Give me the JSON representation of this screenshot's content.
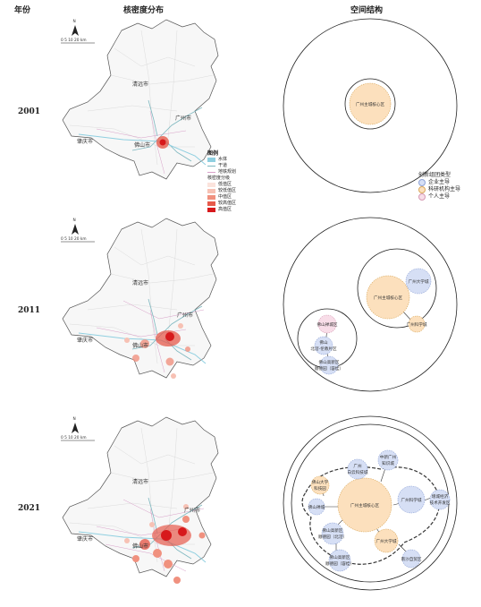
{
  "headers": {
    "year": "年份",
    "density": "核密度分布",
    "structure": "空间结构"
  },
  "years": [
    "2001",
    "2011",
    "2021"
  ],
  "map": {
    "north": "N",
    "scale": "0 5 10 20 km",
    "cities": {
      "qingyuan": "清远市",
      "guangzhou": "广州市",
      "zhaoqing": "肇庆市",
      "foshan": "佛山市"
    }
  },
  "legend": {
    "title": "图例",
    "water": "水体",
    "trunk": "干道",
    "metro": "地铁规划",
    "density_title": "核密度分级",
    "classes": [
      "低值区",
      "较低值区",
      "中值区",
      "较高值区",
      "高值区"
    ],
    "colors": {
      "water": "#8fcfe0",
      "trunk": "#7fb8c0",
      "metro": "#d8a0c8",
      "c1": "#fbe3dc",
      "c2": "#f7c1b4",
      "c3": "#f0917f",
      "c4": "#e65a4b",
      "c5": "#d7191c"
    }
  },
  "cluster_types": {
    "title": "创新组团类型",
    "enterprise": "企业主导",
    "research": "科研机构主导",
    "individual": "个人主导",
    "colors": {
      "enterprise": "#d6dff5",
      "research": "#fce0bd",
      "individual": "#f8dde8"
    }
  },
  "diagrams": {
    "d2001": {
      "core": "广州主城核心区"
    },
    "d2011": {
      "core": "广州主城核心区",
      "univ_town": "广州大学城",
      "knowledge": "广州科学城",
      "chancheng": "佛山禅城区",
      "beijiao": [
        "佛山",
        "北滘-伦教片区"
      ],
      "high_tech": [
        "佛山高新区",
        "顺德园（容桂）"
      ]
    },
    "d2021": {
      "core": "广州主城核心区",
      "science_city": "广州科学城",
      "univ_city": "广州大学城",
      "sino_sg": [
        "中新广州",
        "知识城"
      ],
      "baiyun": [
        "广州",
        "白云科技城"
      ],
      "econ_dev": [
        "增城经济",
        "技术开发区"
      ],
      "nansha": "南沙自贸区",
      "foshan_univ": [
        "佛山大学",
        "科技园"
      ],
      "chancheng": "佛山禅城",
      "gaoxin_bj": [
        "佛山高新区",
        "顺德园（北滘）"
      ],
      "gaoxin_rg": [
        "佛山高新区",
        "顺德园（容桂）"
      ]
    }
  }
}
